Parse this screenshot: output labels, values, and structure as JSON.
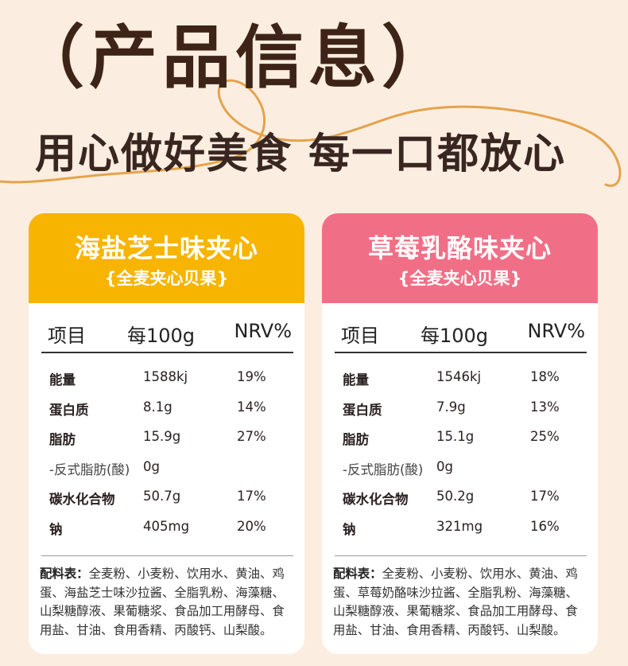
{
  "header": {
    "title": "（产品信息）",
    "slogan": "用心做好美食 每一口都放心"
  },
  "columns": [
    "项目",
    "每100g",
    "NRV%"
  ],
  "cards": [
    {
      "title": "海盐芝士味夹心",
      "subtitle": "{全麦夹心贝果}",
      "rows": [
        {
          "name": "能量",
          "value": "1588kj",
          "nrv": "19%"
        },
        {
          "name": "蛋白质",
          "value": "8.1g",
          "nrv": "14%"
        },
        {
          "name": "脂肪",
          "value": "15.9g",
          "nrv": "27%"
        },
        {
          "name": "-反式脂肪(酸)",
          "value": "0g",
          "nrv": ""
        },
        {
          "name": "碳水化合物",
          "value": "50.7g",
          "nrv": "17%"
        },
        {
          "name": "钠",
          "value": "405mg",
          "nrv": "20%"
        }
      ],
      "ingredients_label": "配料表：",
      "ingredients": "全麦粉、小麦粉、饮用水、黄油、鸡蛋、海盐芝士味沙拉酱、全脂乳粉、海藻糖、山梨糖醇液、果葡糖浆、食品加工用酵母、食用盐、甘油、食用香精、丙酸钙、山梨酸。"
    },
    {
      "title": "草莓乳酪味夹心",
      "subtitle": "{全麦夹心贝果}",
      "rows": [
        {
          "name": "能量",
          "value": "1546kj",
          "nrv": "18%"
        },
        {
          "name": "蛋白质",
          "value": "7.9g",
          "nrv": "13%"
        },
        {
          "name": "脂肪",
          "value": "15.1g",
          "nrv": "25%"
        },
        {
          "name": "-反式脂肪(酸)",
          "value": "0g",
          "nrv": ""
        },
        {
          "name": "碳水化合物",
          "value": "50.2g",
          "nrv": "17%"
        },
        {
          "name": "钠",
          "value": "321mg",
          "nrv": "16%"
        }
      ],
      "ingredients_label": "配料表：",
      "ingredients": "全麦粉、小麦粉、饮用水、黄油、鸡蛋、草莓奶酪味沙拉酱、全脂乳粉、海藻糖、山梨糖醇液、果葡糖浆、食品加工用酵母、食用盐、甘油、食用香精、丙酸钙、山梨酸。"
    }
  ],
  "colors": {
    "background": "#fbeee0",
    "title": "#3d2417",
    "card_left_header": "#f7b400",
    "card_right_header": "#f16f86",
    "swirl": "#e5a34c"
  }
}
